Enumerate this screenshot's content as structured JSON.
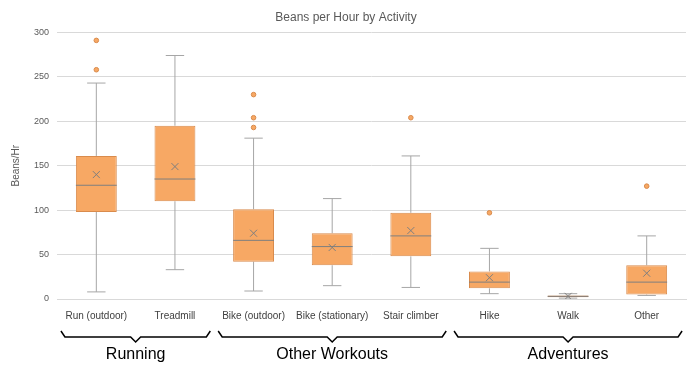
{
  "chart_data": {
    "type": "boxplot",
    "title": "Beans per Hour by Activity",
    "ylabel": "Beans/Hr",
    "categories": [
      "Run (outdoor)",
      "Treadmill",
      "Bike (outdoor)",
      "Bike (stationary)",
      "Stair climber",
      "Hike",
      "Walk",
      "Other"
    ],
    "min": [
      8,
      33,
      9,
      15,
      13,
      6,
      1,
      4
    ],
    "q1": [
      98,
      110,
      42,
      38,
      48,
      12,
      2,
      5
    ],
    "median": [
      128,
      135,
      66,
      59,
      71,
      19,
      3,
      19
    ],
    "q3": [
      161,
      195,
      101,
      74,
      97,
      31,
      4,
      38
    ],
    "max": [
      243,
      274,
      181,
      113,
      161,
      57,
      6,
      71
    ],
    "mean": [
      140,
      149,
      74,
      58,
      77,
      24,
      3,
      29
    ],
    "outliers": [
      [
        258,
        291
      ],
      [],
      [
        193,
        204,
        230
      ],
      [],
      [
        204
      ],
      [
        97
      ],
      [],
      [
        127
      ]
    ],
    "groups": [
      {
        "name": "Running",
        "categories": [
          "Run (outdoor)",
          "Treadmill"
        ]
      },
      {
        "name": "Other Workouts",
        "categories": [
          "Bike (outdoor)",
          "Bike (stationary)",
          "Stair climber"
        ]
      },
      {
        "name": "Adventures",
        "categories": [
          "Hike",
          "Walk",
          "Other"
        ]
      }
    ],
    "color": "#f7a864",
    "ylim": [
      0,
      300
    ],
    "yticks": [
      0,
      50,
      100,
      150,
      200,
      250,
      300
    ],
    "grid": true
  }
}
